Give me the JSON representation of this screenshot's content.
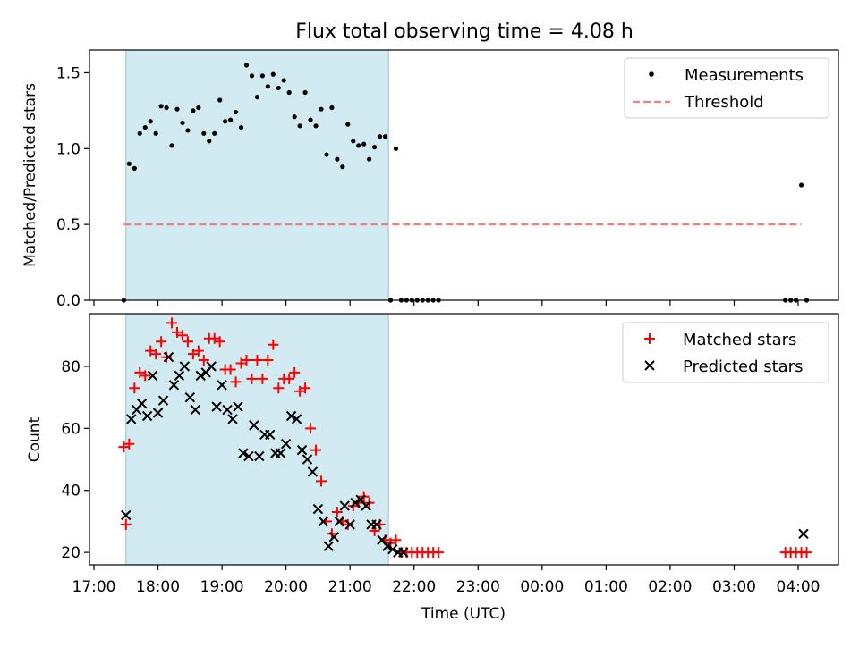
{
  "chart_data": [
    {
      "type": "scatter",
      "title": "Flux total observing time = 4.08 h",
      "xlabel": "",
      "ylabel": "Matched/Predicted stars",
      "ylim": [
        0,
        1.65
      ],
      "xlim": [
        "17:00",
        "04:40"
      ],
      "yticks": [
        0.0,
        0.5,
        1.0,
        1.5
      ],
      "ytick_labels": [
        "0.0",
        "0.5",
        "1.0",
        "1.5"
      ],
      "highlight_span": [
        "17:30",
        "21:36"
      ],
      "legend_position": "top-right",
      "series": [
        {
          "name": "Measurements",
          "marker": "dot",
          "color": "#000000",
          "x": [
            "17:28",
            "17:33",
            "17:38",
            "17:43",
            "17:48",
            "17:53",
            "17:58",
            "18:03",
            "18:08",
            "18:13",
            "18:18",
            "18:23",
            "18:28",
            "18:33",
            "18:38",
            "18:43",
            "18:48",
            "18:53",
            "18:58",
            "19:03",
            "19:08",
            "19:13",
            "19:18",
            "19:23",
            "19:28",
            "19:33",
            "19:38",
            "19:43",
            "19:48",
            "19:53",
            "19:58",
            "20:03",
            "20:08",
            "20:13",
            "20:18",
            "20:23",
            "20:28",
            "20:33",
            "20:38",
            "20:43",
            "20:48",
            "20:53",
            "20:58",
            "21:03",
            "21:08",
            "21:13",
            "21:18",
            "21:23",
            "21:28",
            "21:33",
            "21:38",
            "21:43",
            "21:48",
            "21:53",
            "21:58",
            "22:03",
            "22:08",
            "22:13",
            "22:18",
            "22:23",
            "03:48",
            "03:53",
            "03:58",
            "04:03",
            "04:08"
          ],
          "y": [
            0.0,
            0.9,
            0.87,
            1.1,
            1.14,
            1.18,
            1.1,
            1.28,
            1.27,
            1.02,
            1.26,
            1.17,
            1.12,
            1.25,
            1.27,
            1.1,
            1.05,
            1.1,
            1.32,
            1.18,
            1.19,
            1.24,
            1.14,
            1.55,
            1.48,
            1.34,
            1.48,
            1.41,
            1.49,
            1.4,
            1.45,
            1.37,
            1.21,
            1.15,
            1.37,
            1.19,
            1.15,
            1.26,
            0.96,
            1.27,
            0.93,
            0.88,
            1.16,
            1.05,
            1.02,
            1.03,
            0.93,
            1.01,
            1.08,
            1.08,
            0.0,
            1.0,
            0.0,
            0.0,
            0.0,
            0.0,
            0.0,
            0.0,
            0.0,
            0.0,
            0.0,
            0.0,
            0.0,
            0.76,
            0.0
          ]
        },
        {
          "name": "Threshold",
          "marker": "dashed-line",
          "color": "#f08080",
          "x": [
            "17:28",
            "04:03"
          ],
          "y": [
            0.5,
            0.5
          ]
        }
      ]
    },
    {
      "type": "scatter",
      "title": "",
      "xlabel": "Time (UTC)",
      "ylabel": "Count",
      "ylim": [
        16,
        97
      ],
      "xlim": [
        "17:00",
        "04:40"
      ],
      "yticks": [
        20,
        40,
        60,
        80
      ],
      "ytick_labels": [
        "20",
        "40",
        "60",
        "80"
      ],
      "xtick_labels": [
        "17:00",
        "18:00",
        "19:00",
        "20:00",
        "21:00",
        "22:00",
        "23:00",
        "00:00",
        "01:00",
        "02:00",
        "03:00",
        "04:00"
      ],
      "highlight_span": [
        "17:30",
        "21:36"
      ],
      "legend_position": "top-right",
      "series": [
        {
          "name": "Matched stars",
          "marker": "plus",
          "color": "#ff0000",
          "x": [
            "17:28",
            "17:33",
            "17:38",
            "17:43",
            "17:48",
            "17:53",
            "17:58",
            "18:03",
            "18:08",
            "18:13",
            "18:18",
            "18:23",
            "18:28",
            "18:33",
            "18:38",
            "18:43",
            "18:48",
            "18:53",
            "18:58",
            "19:03",
            "19:08",
            "19:13",
            "19:18",
            "19:23",
            "19:28",
            "19:33",
            "19:38",
            "19:43",
            "19:48",
            "19:53",
            "19:58",
            "20:03",
            "20:08",
            "20:13",
            "20:18",
            "20:23",
            "20:28",
            "20:33",
            "20:38",
            "20:43",
            "20:48",
            "20:53",
            "20:58",
            "21:03",
            "21:08",
            "21:13",
            "21:18",
            "21:23",
            "21:28",
            "21:33",
            "21:38",
            "21:43",
            "21:48",
            "21:53",
            "21:58",
            "22:03",
            "22:08",
            "22:13",
            "22:18",
            "22:23",
            "03:48",
            "03:53",
            "03:58",
            "04:03",
            "04:08",
            "17:30"
          ],
          "y": [
            54,
            55,
            73,
            78,
            77,
            85,
            84,
            88,
            83,
            94,
            91,
            90,
            88,
            84,
            85,
            82,
            89,
            89,
            88,
            79,
            79,
            75,
            81,
            82,
            76,
            82,
            76,
            82,
            87,
            73,
            76,
            76,
            78,
            72,
            73,
            60,
            53,
            43,
            30,
            26,
            33,
            30,
            29,
            35,
            36,
            38,
            36,
            27,
            29,
            24,
            23,
            24,
            20,
            20,
            20,
            20,
            20,
            20,
            20,
            20,
            20,
            20,
            20,
            20,
            20,
            29
          ]
        },
        {
          "name": "Predicted stars",
          "marker": "x",
          "color": "#000000",
          "x": [
            "17:30",
            "17:35",
            "17:40",
            "17:45",
            "17:50",
            "17:55",
            "18:00",
            "18:05",
            "18:10",
            "18:15",
            "18:20",
            "18:25",
            "18:30",
            "18:35",
            "18:40",
            "18:45",
            "18:50",
            "18:55",
            "19:00",
            "19:05",
            "19:10",
            "19:15",
            "19:20",
            "19:25",
            "19:30",
            "19:35",
            "19:40",
            "19:45",
            "19:50",
            "19:55",
            "20:00",
            "20:05",
            "20:10",
            "20:15",
            "20:20",
            "20:25",
            "20:30",
            "20:35",
            "20:40",
            "20:45",
            "20:50",
            "20:55",
            "21:00",
            "21:05",
            "21:10",
            "21:15",
            "21:20",
            "21:25",
            "21:30",
            "21:35",
            "21:40",
            "21:45",
            "21:50",
            "04:05"
          ],
          "y": [
            32,
            63,
            66,
            68,
            64,
            77,
            65,
            69,
            83,
            74,
            77,
            80,
            70,
            66,
            77,
            78,
            80,
            67,
            74,
            66,
            63,
            67,
            52,
            51,
            61,
            51,
            58,
            58,
            52,
            52,
            55,
            64,
            63,
            53,
            50,
            46,
            34,
            30,
            22,
            25,
            30,
            35,
            29,
            36,
            37,
            35,
            29,
            29,
            24,
            22,
            21,
            20,
            20,
            26
          ]
        }
      ]
    }
  ]
}
